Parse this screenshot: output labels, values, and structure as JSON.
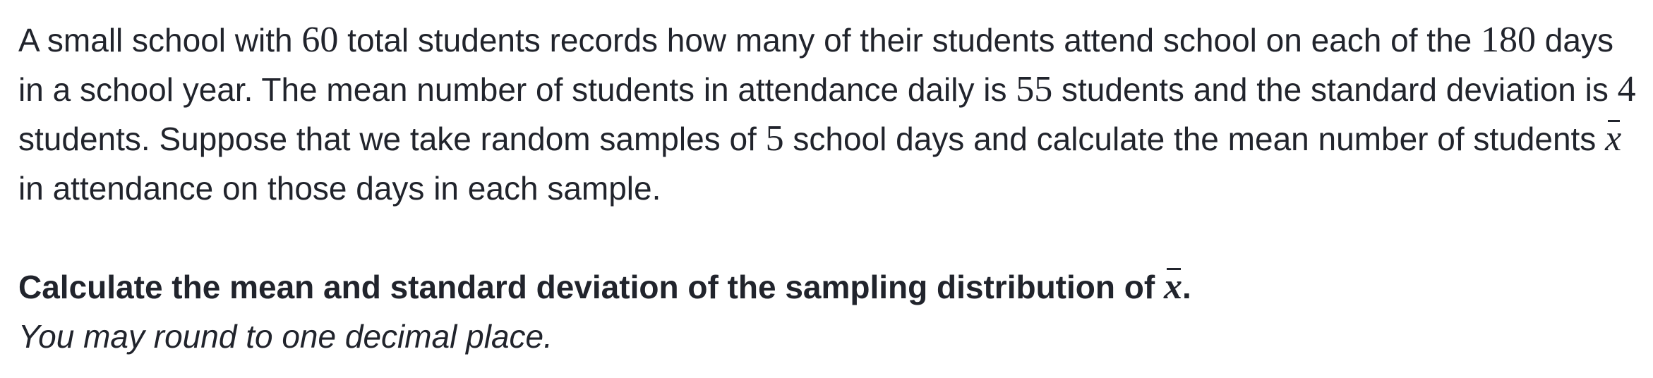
{
  "problem": {
    "intro": {
      "t1": "A small school with ",
      "total_students": "60",
      "t2": " total students records how many of their students attend school on each of the ",
      "days_in_year": "180",
      "t3": " days in a school year. The mean number of students in attendance daily is ",
      "mean_attendance": "55",
      "t4": " students and the standard deviation is ",
      "std_dev": "4",
      "t5": " students. Suppose that we take random samples of ",
      "sample_size": "5",
      "t6": " school days and calculate the mean number of students ",
      "var_symbol": "x",
      "t7": " in attendance on those days in each sample."
    },
    "question": {
      "t1": "Calculate the mean and standard deviation of the sampling distribution of ",
      "var_symbol": "x",
      "t2": "."
    },
    "hint": "You may round to one decimal place."
  }
}
